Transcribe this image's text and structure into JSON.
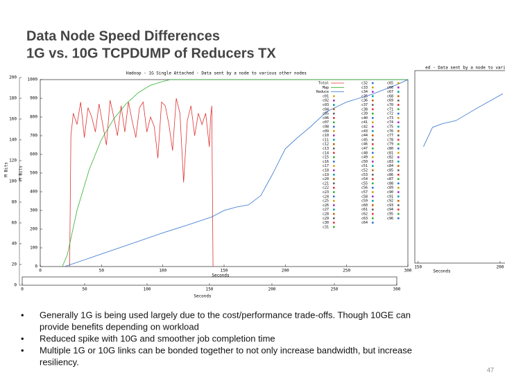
{
  "slide": {
    "title": [
      "Data Node Speed Differences",
      "1G vs. 10G TCPDUMP of Reducers TX"
    ],
    "bullets": [
      [
        "Generally 1G is being used largely due to the cost/performance trade-offs. Though 10GE can",
        "provide benefits depending on workload"
      ],
      [
        "Reduced spike with 10G and smoother job completion time"
      ],
      [
        "Multiple 1G or 10G links can be bonded together to not only increase bandwidth, but increase",
        "resiliency."
      ]
    ],
    "page_number": "47"
  },
  "chart_data": [
    {
      "type": "line",
      "title": "Hadoop - 1G Single Attached - Data sent by a node to various other nodes",
      "xlabel": "Seconds",
      "ylabel": "M Bits",
      "xlim": [
        0,
        300
      ],
      "ylim": [
        0,
        1000
      ],
      "xticks": [
        0,
        50,
        100,
        150,
        200,
        250,
        300
      ],
      "yticks": [
        0,
        100,
        200,
        300,
        400,
        500,
        600,
        700,
        800,
        900,
        1000
      ],
      "series": [
        {
          "name": "Total",
          "color": "#e03030",
          "x": [
            24,
            25,
            27,
            30,
            33,
            36,
            39,
            42,
            45,
            48,
            51,
            54,
            57,
            60,
            63,
            66,
            69,
            72,
            75,
            78,
            81,
            84,
            87,
            90,
            93,
            96,
            99,
            102,
            105,
            108,
            111,
            114,
            117,
            120,
            123,
            126,
            129,
            132,
            135,
            138,
            139,
            140,
            141
          ],
          "values": [
            0,
            700,
            820,
            760,
            880,
            690,
            850,
            800,
            720,
            870,
            760,
            650,
            890,
            800,
            700,
            860,
            720,
            880,
            780,
            690,
            850,
            880,
            720,
            800,
            750,
            580,
            880,
            860,
            760,
            620,
            900,
            820,
            450,
            780,
            860,
            700,
            820,
            760,
            820,
            640,
            800,
            860,
            0
          ]
        },
        {
          "name": "Map",
          "color": "#30b030",
          "x": [
            18,
            22,
            30,
            40,
            50,
            60,
            70,
            80,
            90,
            100,
            106,
            300
          ],
          "values": [
            0,
            60,
            300,
            520,
            680,
            790,
            870,
            930,
            970,
            990,
            1000,
            1000
          ]
        },
        {
          "name": "Reduce",
          "color": "#3070d0",
          "x": [
            20,
            40,
            60,
            80,
            100,
            120,
            140,
            150,
            160,
            170,
            180,
            190,
            200,
            210,
            220,
            234,
            250,
            270,
            290,
            300
          ],
          "values": [
            0,
            45,
            90,
            135,
            180,
            222,
            265,
            300,
            318,
            330,
            380,
            500,
            630,
            690,
            745,
            830,
            880,
            920,
            970,
            1000
          ]
        }
      ],
      "legend": [
        "Total",
        "Map",
        "Reduce",
        "c01",
        "c02",
        "c03",
        "c04",
        "c05",
        "c06",
        "c07",
        "c08",
        "c09",
        "c10",
        "c11",
        "c12",
        "c13",
        "c14",
        "c15",
        "c16",
        "c17",
        "c18",
        "c19",
        "c20",
        "c21",
        "c22",
        "c23",
        "c24",
        "c25",
        "c26",
        "c27",
        "c28",
        "c29",
        "c30",
        "c31",
        "c32",
        "c33",
        "c34",
        "c35",
        "c36",
        "c37",
        "c38",
        "c39",
        "c40",
        "c41",
        "c42",
        "c43",
        "c44",
        "c45",
        "c46",
        "c47",
        "c48",
        "c49",
        "c50",
        "c51",
        "c52",
        "c53",
        "c54",
        "c55",
        "c56",
        "c57",
        "c58",
        "c59",
        "c60",
        "c61",
        "c62",
        "c63",
        "c64",
        "c65",
        "c66",
        "c67",
        "c68",
        "c69",
        "c70",
        "c71",
        "c72",
        "c73",
        "c74",
        "c75",
        "c76",
        "c77",
        "c78",
        "c79",
        "c80",
        "c81",
        "c82",
        "c83",
        "c84",
        "c85",
        "c86",
        "c87",
        "c88",
        "c89",
        "c90",
        "c91",
        "c92",
        "c93",
        "c94",
        "c95",
        "c96"
      ]
    },
    {
      "type": "line",
      "xlabel": "Seconds",
      "ylabel": "M Bits",
      "xlim": [
        0,
        300
      ],
      "ylim": [
        0,
        200
      ],
      "xticks": [
        0,
        50,
        100,
        150,
        200,
        250,
        300
      ],
      "yticks": [
        0,
        20,
        40,
        60,
        80,
        100,
        120,
        140,
        160,
        180,
        200
      ],
      "series": []
    },
    {
      "type": "line",
      "title": "ed - Data sent by a node to various o",
      "xlabel": "Seconds",
      "xlim": [
        148,
        203
      ],
      "ylim": [
        0,
        200
      ],
      "xticks": [
        150,
        200
      ],
      "series": [
        {
          "color": "#3070d0",
          "x": [
            153.3,
            158.8,
            165,
            173,
            186,
            201.7
          ],
          "values": [
            121,
            141,
            145,
            148,
            161,
            176
          ]
        }
      ]
    }
  ]
}
